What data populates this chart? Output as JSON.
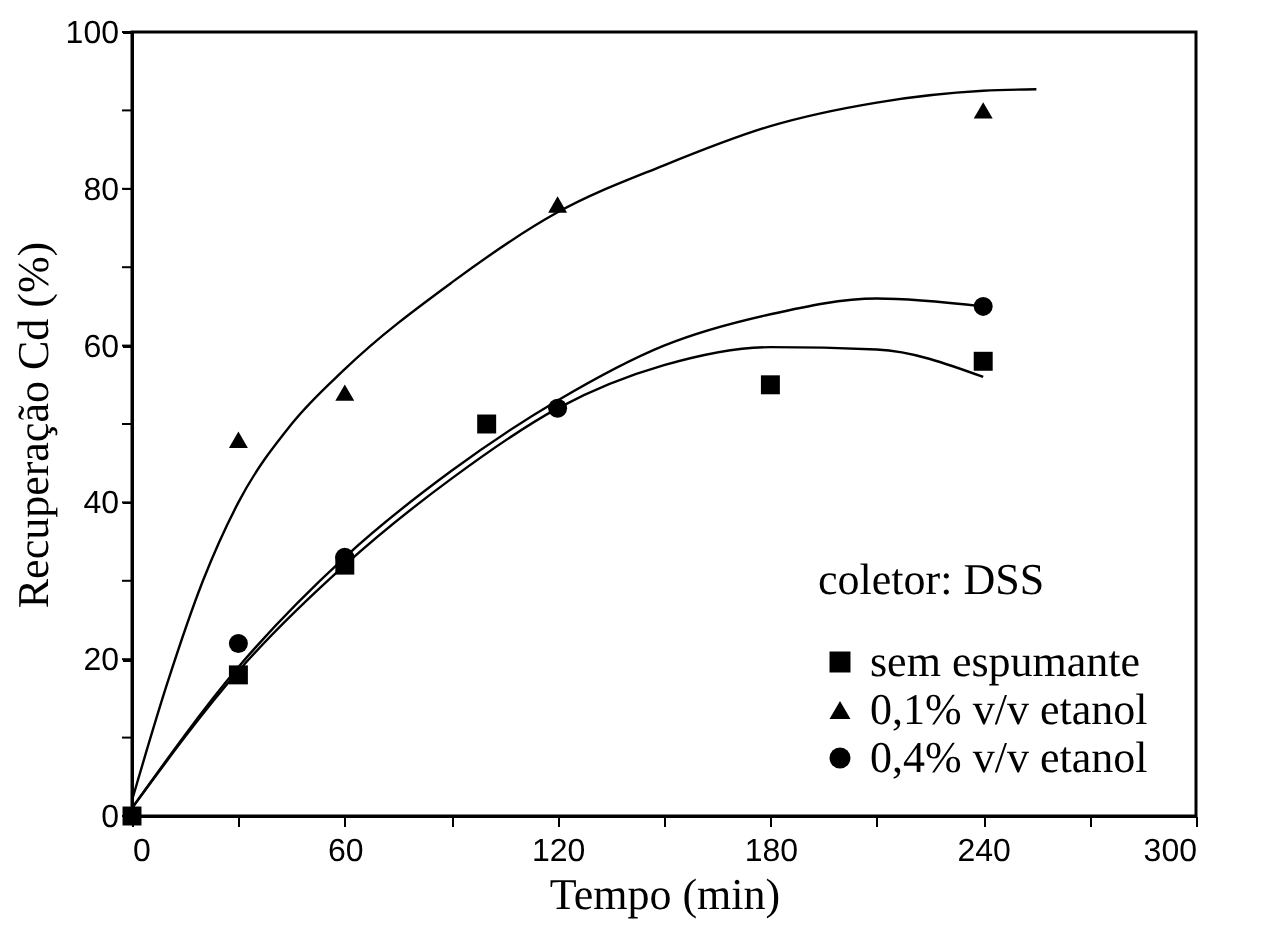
{
  "chart_data": {
    "type": "scatter",
    "xlabel": "Tempo (min)",
    "ylabel": "Recuperação Cd (%)",
    "legend_title": "coletor: DSS",
    "legend": "bottom right",
    "grid": false,
    "xlim": [
      0,
      300
    ],
    "ylim": [
      0,
      100
    ],
    "xticks": [
      0,
      {
        "value": 30,
        "label": null
      },
      60,
      {
        "value": 90,
        "label": null
      },
      120,
      {
        "value": 150,
        "label": null
      },
      180,
      {
        "value": 210,
        "label": null
      },
      240,
      {
        "value": 270,
        "label": null
      },
      300
    ],
    "yticks": [
      0,
      {
        "value": 10,
        "label": null
      },
      20,
      {
        "value": 30,
        "label": null
      },
      40,
      {
        "value": 50,
        "label": null
      },
      60,
      {
        "value": 70,
        "label": null
      },
      80,
      {
        "value": 90,
        "label": null
      },
      100
    ],
    "series": [
      {
        "name": "sem espumante",
        "marker": "square",
        "color": "#000000",
        "x": [
          0,
          30,
          60,
          100,
          180,
          240
        ],
        "values": [
          0,
          18,
          32,
          50,
          55,
          58
        ]
      },
      {
        "name": "0,1% v/v etanol",
        "marker": "triangle",
        "color": "#000000",
        "x": [
          30,
          60,
          120,
          240
        ],
        "values": [
          48,
          54,
          78,
          90
        ]
      },
      {
        "name": "0,4% v/v  etanol",
        "marker": "circle",
        "color": "#000000",
        "x": [
          30,
          60,
          120,
          240
        ],
        "values": [
          22,
          33,
          52,
          65
        ]
      },
      {
        "type": "line",
        "color": "#000000",
        "x": [
          0,
          10,
          20,
          30,
          45,
          60,
          90,
          120,
          150,
          180,
          210,
          240,
          255
        ],
        "values": [
          2,
          17,
          30,
          40,
          50,
          57,
          68,
          77,
          83,
          88,
          91,
          92.5,
          92.7
        ]
      },
      {
        "type": "line",
        "color": "#000000",
        "x": [
          0,
          30,
          60,
          90,
          120,
          150,
          180,
          210,
          240
        ],
        "values": [
          1,
          19,
          33,
          44,
          53,
          60,
          64,
          66,
          65
        ]
      },
      {
        "type": "line",
        "color": "#000000",
        "x": [
          0,
          30,
          60,
          90,
          120,
          150,
          180,
          210,
          240
        ],
        "values": [
          1,
          18.5,
          32,
          43,
          52,
          57.5,
          59.8,
          59.5,
          56
        ]
      }
    ]
  }
}
